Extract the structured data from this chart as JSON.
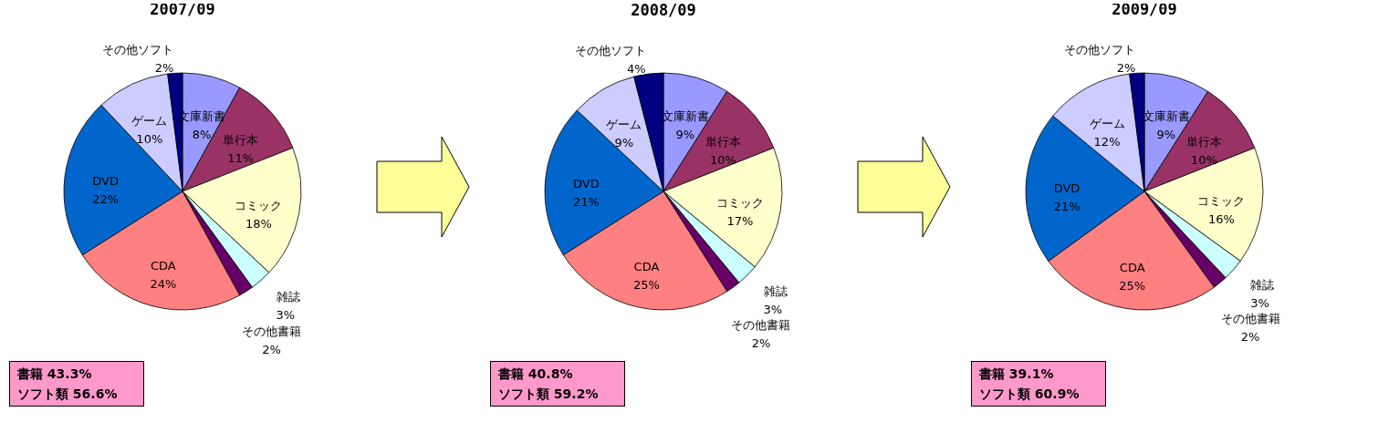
{
  "chart_data": [
    {
      "type": "pie",
      "title": "2007/09",
      "categories": [
        "文庫新書",
        "単行本",
        "コミック",
        "雑誌",
        "その他書籍",
        "CDA",
        "DVD",
        "ゲーム",
        "その他ソフト"
      ],
      "values": [
        8,
        11,
        18,
        3,
        2,
        24,
        22,
        10,
        2
      ],
      "value_labels": [
        "8%",
        "11%",
        "18%",
        "3%",
        "2%",
        "24%",
        "22%",
        "10%",
        "2%"
      ],
      "colors": [
        "#9999ff",
        "#993366",
        "#ffffcc",
        "#ccffff",
        "#660066",
        "#ff8080",
        "#0066cc",
        "#ccccff",
        "#000080"
      ],
      "annotations": [
        "書籍 43.3%",
        "ソフト類 56.6%"
      ]
    },
    {
      "type": "pie",
      "title": "2008/09",
      "categories": [
        "文庫新書",
        "単行本",
        "コミック",
        "雑誌",
        "その他書籍",
        "CDA",
        "DVD",
        "ゲーム",
        "その他ソフト"
      ],
      "values": [
        9,
        10,
        17,
        3,
        2,
        25,
        21,
        9,
        4
      ],
      "value_labels": [
        "9%",
        "10%",
        "17%",
        "3%",
        "2%",
        "25%",
        "21%",
        "9%",
        "4%"
      ],
      "colors": [
        "#9999ff",
        "#993366",
        "#ffffcc",
        "#ccffff",
        "#660066",
        "#ff8080",
        "#0066cc",
        "#ccccff",
        "#000080"
      ],
      "annotations": [
        "書籍 40.8%",
        "ソフト類 59.2%"
      ]
    },
    {
      "type": "pie",
      "title": "2009/09",
      "categories": [
        "文庫新書",
        "単行本",
        "コミック",
        "雑誌",
        "その他書籍",
        "CDA",
        "DVD",
        "ゲーム",
        "その他ソフト"
      ],
      "values": [
        9,
        10,
        16,
        3,
        2,
        25,
        21,
        12,
        2
      ],
      "value_labels": [
        "9%",
        "10%",
        "16%",
        "3%",
        "2%",
        "25%",
        "21%",
        "12%",
        "2%"
      ],
      "colors": [
        "#9999ff",
        "#993366",
        "#ffffcc",
        "#ccffff",
        "#660066",
        "#ff8080",
        "#0066cc",
        "#ccccff",
        "#000080"
      ],
      "annotations": [
        "書籍 39.1%",
        "ソフト類 60.9%"
      ]
    }
  ]
}
